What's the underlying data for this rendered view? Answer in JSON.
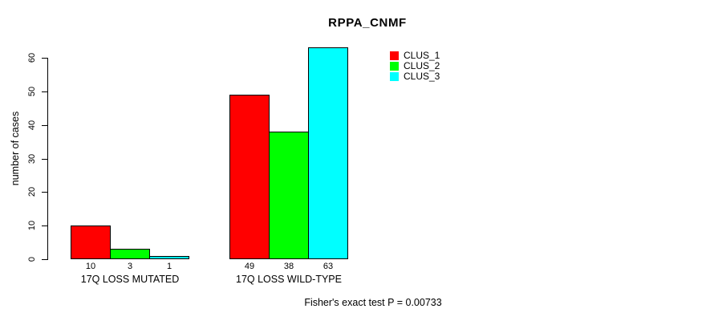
{
  "title": "RPPA_CNMF",
  "footer": "Fisher's exact test P = 0.00733",
  "chart_data": {
    "type": "bar",
    "title": "RPPA_CNMF",
    "categories": [
      "17Q LOSS MUTATED",
      "17Q LOSS WILD-TYPE"
    ],
    "series": [
      {
        "name": "CLUS_1",
        "color": "#ff0000",
        "values": [
          10,
          49
        ]
      },
      {
        "name": "CLUS_2",
        "color": "#00ff00",
        "values": [
          3,
          38
        ]
      },
      {
        "name": "CLUS_3",
        "color": "#00ffff",
        "values": [
          1,
          63
        ]
      }
    ],
    "bar_value_labels": [
      [
        "10",
        "3",
        "1"
      ],
      [
        "49",
        "38",
        "63"
      ]
    ],
    "xlabel": "",
    "ylabel": "number of cases",
    "ylim": [
      0,
      63
    ],
    "yticks": [
      0,
      10,
      20,
      30,
      40,
      50,
      60
    ],
    "grid": false,
    "legend": {
      "position": "top-right",
      "entries": [
        "CLUS_1",
        "CLUS_2",
        "CLUS_3"
      ]
    },
    "annotation": "Fisher's exact test P = 0.00733"
  }
}
